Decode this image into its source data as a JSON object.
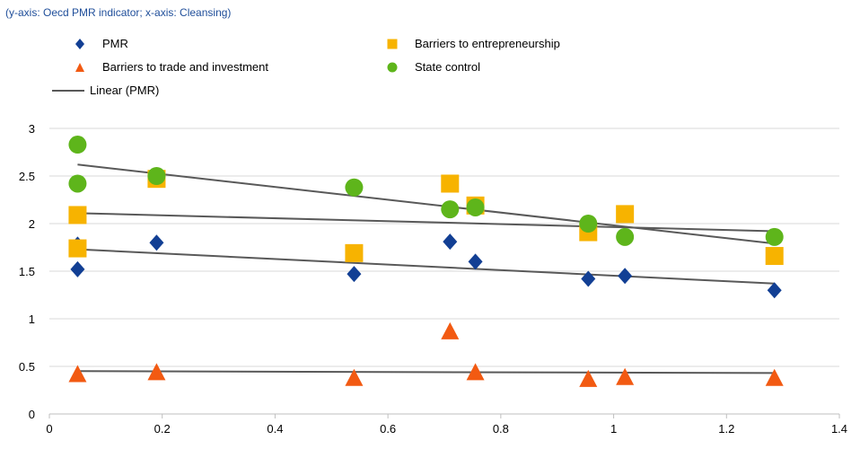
{
  "subtitle": "(y-axis: Oecd PMR indicator; x-axis: Cleansing)",
  "legend": {
    "items": [
      {
        "label": "PMR",
        "marker": "diamond",
        "color": "#123f94"
      },
      {
        "label": "Barriers to entrepreneurship",
        "marker": "square",
        "color": "#f7b300"
      },
      {
        "label": "Barriers to trade and investment",
        "marker": "triangle",
        "color": "#f25a12"
      },
      {
        "label": "State control",
        "marker": "circle",
        "color": "#5eb51b"
      },
      {
        "label": "Linear (PMR)",
        "marker": "line",
        "color": "#595959"
      }
    ]
  },
  "chart_data": {
    "type": "scatter",
    "xlabel": "",
    "ylabel": "",
    "xlim": [
      0,
      1.4
    ],
    "ylim": [
      0,
      3
    ],
    "x_ticks": [
      0,
      0.2,
      0.4,
      0.6,
      0.8,
      1,
      1.2,
      1.4
    ],
    "x_tick_labels": [
      "0",
      "0.2",
      "0.4",
      "0.6",
      "0.8",
      "1",
      "1.2",
      "1.4"
    ],
    "y_ticks": [
      0,
      0.5,
      1,
      1.5,
      2,
      2.5,
      3
    ],
    "y_tick_labels": [
      "0",
      "0.5",
      "1",
      "1.5",
      "2",
      "2.5",
      "3"
    ],
    "grid": "horizontal",
    "series": [
      {
        "name": "PMR",
        "marker": "diamond",
        "color": "#123f94",
        "points": [
          [
            0.05,
            1.78
          ],
          [
            0.05,
            1.52
          ],
          [
            0.19,
            1.8
          ],
          [
            0.54,
            1.47
          ],
          [
            0.71,
            1.81
          ],
          [
            0.755,
            1.6
          ],
          [
            0.955,
            1.42
          ],
          [
            1.02,
            1.45
          ],
          [
            1.285,
            1.3
          ]
        ]
      },
      {
        "name": "Barriers to entrepreneurship",
        "marker": "square",
        "color": "#f7b300",
        "points": [
          [
            0.05,
            2.09
          ],
          [
            0.05,
            1.74
          ],
          [
            0.19,
            2.47
          ],
          [
            0.54,
            1.69
          ],
          [
            0.71,
            2.42
          ],
          [
            0.755,
            2.19
          ],
          [
            0.955,
            1.91
          ],
          [
            1.02,
            2.1
          ],
          [
            1.285,
            1.66
          ]
        ]
      },
      {
        "name": "Barriers to trade and investment",
        "marker": "triangle",
        "color": "#f25a12",
        "points": [
          [
            0.05,
            0.41
          ],
          [
            0.19,
            0.43
          ],
          [
            0.54,
            0.37
          ],
          [
            0.71,
            0.86
          ],
          [
            0.755,
            0.43
          ],
          [
            0.955,
            0.36
          ],
          [
            1.02,
            0.38
          ],
          [
            1.285,
            0.37
          ]
        ]
      },
      {
        "name": "State control",
        "marker": "circle",
        "color": "#5eb51b",
        "points": [
          [
            0.05,
            2.83
          ],
          [
            0.05,
            2.42
          ],
          [
            0.19,
            2.5
          ],
          [
            0.54,
            2.38
          ],
          [
            0.71,
            2.15
          ],
          [
            0.755,
            2.17
          ],
          [
            0.955,
            2.0
          ],
          [
            1.02,
            1.86
          ],
          [
            1.285,
            1.86
          ]
        ]
      }
    ],
    "trendlines": [
      {
        "color": "#595959",
        "from": [
          0.05,
          2.62
        ],
        "to": [
          1.285,
          1.79
        ]
      },
      {
        "color": "#595959",
        "from": [
          0.05,
          2.11
        ],
        "to": [
          1.285,
          1.92
        ]
      },
      {
        "color": "#595959",
        "from": [
          0.05,
          1.73
        ],
        "to": [
          1.285,
          1.37
        ]
      },
      {
        "color": "#595959",
        "from": [
          0.05,
          0.45
        ],
        "to": [
          1.285,
          0.43
        ]
      }
    ]
  }
}
